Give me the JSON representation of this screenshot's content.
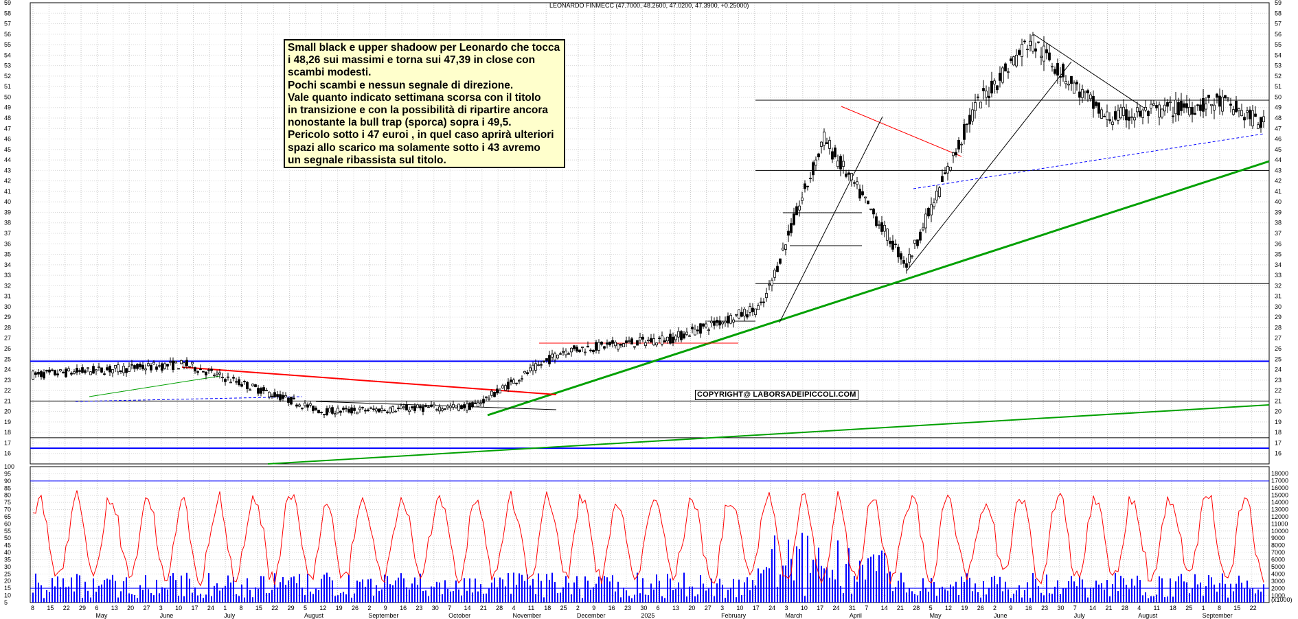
{
  "title": "LEONARDO FINMECC (47.7000, 48.2600, 47.0200, 47.3900, +0.25000)",
  "note": {
    "lines": [
      "Small black e upper shadoow per Leonardo che tocca",
      "i 48,26 sui massimi e torna sui 47,39 in close con",
      "scambi modesti.",
      "Pochi scambi e nessun segnale di direzione.",
      "Vale quanto indicato settimana scorsa con il titolo",
      "in transizione e con la possibilità di ripartire ancora",
      "nonostante la bull trap (sporca) sopra i 49,5.",
      "Pericolo sotto i 47 euroi , in quel caso aprirà ulteriori",
      "spazi allo scarico ma solamente sotto i 43 avremo",
      "un segnale ribassista sul titolo."
    ]
  },
  "copyright": "COPYRIGHT@ LABORSADEIPICCOLI.COM",
  "volume_unit": "(x1000)",
  "colors": {
    "candles": "#000000",
    "rsi": "#ff0000",
    "volume": "#0000ff",
    "trend_green": "#00a000",
    "horizontal_blue": "#0000ff",
    "resistance_red": "#ff0000"
  },
  "chart_data": [
    {
      "type": "line",
      "title": "LEONARDO FINMECC (47.7000, 48.2600, 47.0200, 47.3900, +0.25000)",
      "subtype": "candlestick",
      "ylim": [
        15,
        59
      ],
      "y_ticks": [
        16,
        17,
        18,
        19,
        20,
        21,
        22,
        23,
        24,
        25,
        26,
        27,
        28,
        29,
        30,
        31,
        32,
        33,
        34,
        35,
        36,
        37,
        38,
        39,
        40,
        41,
        42,
        43,
        44,
        45,
        46,
        47,
        48,
        49,
        50,
        51,
        52,
        53,
        54,
        55,
        56,
        57,
        58,
        59
      ],
      "x_labels_top": [
        "8",
        "15",
        "22",
        "29",
        "6",
        "13",
        "20",
        "27",
        "3",
        "10",
        "17",
        "24",
        "1",
        "8",
        "15",
        "22",
        "29",
        "5",
        "12",
        "19",
        "26",
        "2",
        "9",
        "16",
        "23",
        "30",
        "7",
        "14",
        "21",
        "28",
        "4",
        "11",
        "18",
        "25",
        "2",
        "9",
        "16",
        "23",
        "30",
        "6",
        "13",
        "20",
        "27",
        "3",
        "10",
        "17",
        "24",
        "3",
        "10",
        "17",
        "24",
        "31",
        "7",
        "14",
        "21",
        "28",
        "5",
        "12",
        "19",
        "26",
        "2",
        "9",
        "16",
        "23",
        "30",
        "7",
        "14",
        "21",
        "28",
        "4",
        "11",
        "18",
        "25",
        "1",
        "8",
        "15",
        "22"
      ],
      "x_labels_months": [
        "May",
        "June",
        "July",
        "August",
        "September",
        "October",
        "November",
        "December",
        "2025",
        "February",
        "March",
        "April",
        "May",
        "June",
        "July",
        "August",
        "September"
      ],
      "last_candle": {
        "open": 47.7,
        "high": 48.26,
        "low": 47.02,
        "close": 47.39,
        "change": 0.25
      },
      "key_prices": [
        {
          "date": "2024-04",
          "close": 23.5
        },
        {
          "date": "2024-06",
          "close": 24.5
        },
        {
          "date": "2024-08",
          "close": 20.0
        },
        {
          "date": "2024-10",
          "close": 20.5
        },
        {
          "date": "2024-11",
          "close": 25.8
        },
        {
          "date": "2025-01",
          "close": 27.0
        },
        {
          "date": "2025-02",
          "close": 30.0
        },
        {
          "date": "2025-03",
          "close": 46.0
        },
        {
          "date": "2025-04",
          "close": 34.0
        },
        {
          "date": "2025-05",
          "close": 49.0
        },
        {
          "date": "2025-06",
          "close": 55.5
        },
        {
          "date": "2025-07",
          "close": 48.0
        },
        {
          "date": "2025-08",
          "close": 49.5
        },
        {
          "date": "2025-09",
          "close": 47.39
        }
      ],
      "horizontal_levels": [
        16.5,
        17.5,
        21,
        24.8,
        32.2,
        43,
        49.7
      ],
      "grid": true
    },
    {
      "type": "line",
      "subtype": "oscillator_with_volume",
      "ylim": [
        5,
        100
      ],
      "y_ticks_left": [
        5,
        10,
        15,
        20,
        25,
        30,
        35,
        40,
        45,
        50,
        55,
        60,
        65,
        70,
        75,
        80,
        85,
        90,
        95,
        100
      ],
      "y_ticks_right": [
        1000,
        2000,
        3000,
        4000,
        5000,
        6000,
        7000,
        8000,
        9000,
        10000,
        11000,
        12000,
        13000,
        14000,
        15000,
        16000,
        17000,
        18000
      ],
      "levels": [
        90,
        15
      ],
      "grid": true
    }
  ]
}
